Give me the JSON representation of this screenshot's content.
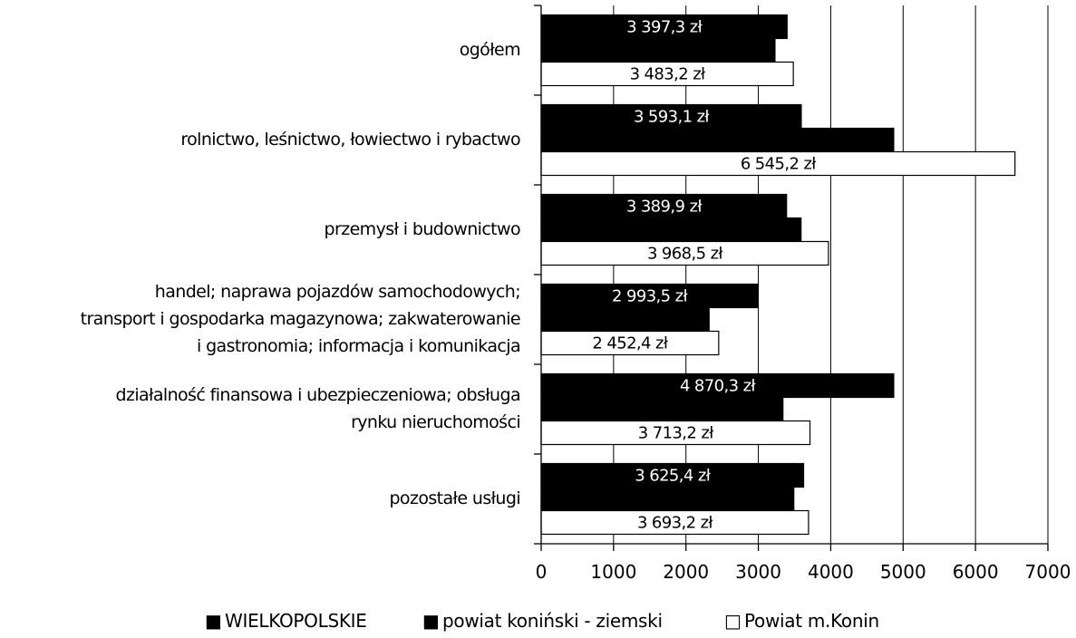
{
  "chart_data": {
    "type": "bar",
    "orientation": "horizontal",
    "categories": [
      [
        "ogółem"
      ],
      [
        "rolnictwo, leśnictwo, łowiectwo i rybactwo"
      ],
      [
        "przemysł i budownictwo"
      ],
      [
        "handel; naprawa pojazdów samochodowych;",
        "transport i gospodarka magazynowa; zakwaterowanie",
        "i gastronomia; informacja i komunikacja"
      ],
      [
        "działalność finansowa i ubezpieczeniowa; obsługa",
        "rynku nieruchomości"
      ],
      [
        "pozostałe usługi"
      ]
    ],
    "series": [
      {
        "name": "WIELKOPOLSKIE",
        "color": "#000000",
        "values": [
          3397.3,
          3593.1,
          3389.9,
          2993.5,
          4870.3,
          3625.4
        ],
        "labels": [
          "3 397,3 zł",
          "3 593,1 zł",
          "3 389,9 zł",
          "2 993,5 zł",
          "4 870,3 zł",
          "3 625,4 zł"
        ]
      },
      {
        "name": "powiat koniński - ziemski",
        "color": "#000000",
        "values": [
          3230,
          4870,
          3590,
          2320,
          3340,
          3490
        ],
        "labels": []
      },
      {
        "name": "Powiat m.Konin",
        "color": "#ffffff",
        "values": [
          3483.2,
          6545.2,
          3968.5,
          2452.4,
          3713.2,
          3693.2
        ],
        "labels": [
          "3 483,2 zł",
          "6 545,2 zł",
          "3 968,5 zł",
          "2 452,4 zł",
          "3 713,2 zł",
          "3 693,2 zł"
        ]
      }
    ],
    "xlim": [
      0,
      7000
    ],
    "xticks": [
      "0",
      "1000",
      "2000",
      "3000",
      "4000",
      "5000",
      "6000",
      "7000"
    ],
    "grid": true,
    "legend_position": "bottom",
    "legend_symbols": [
      "■",
      "■",
      "□"
    ]
  }
}
